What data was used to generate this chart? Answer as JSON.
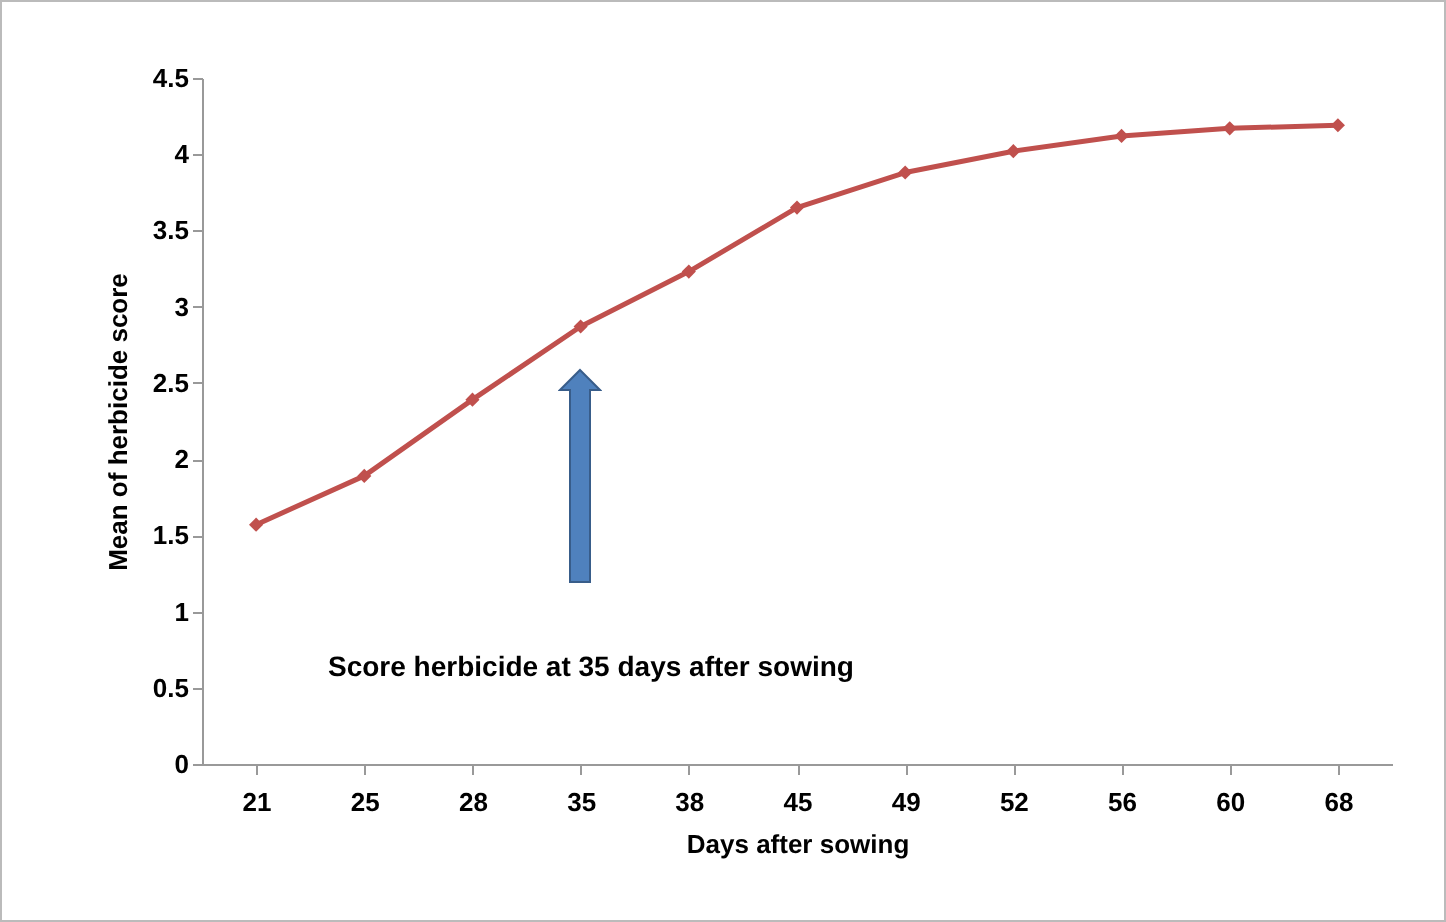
{
  "chart_data": {
    "type": "line",
    "xlabel": "Days after sowing",
    "ylabel": "Mean of herbicide score",
    "categories": [
      "21",
      "25",
      "28",
      "35",
      "38",
      "45",
      "49",
      "52",
      "56",
      "60",
      "68"
    ],
    "series": [
      {
        "color": "#c0504d",
        "values": [
          1.57,
          1.89,
          2.39,
          2.87,
          3.23,
          3.65,
          3.88,
          4.02,
          4.12,
          4.17,
          4.19
        ]
      }
    ],
    "ylim": [
      0,
      4.5
    ],
    "yticks": [
      0,
      0.5,
      1,
      1.5,
      2,
      2.5,
      3,
      3.5,
      4,
      4.5
    ],
    "grid": false,
    "marker": "diamond",
    "line_style": "solid",
    "annotations": [
      "Score herbicide at 35 days after sowing"
    ]
  }
}
